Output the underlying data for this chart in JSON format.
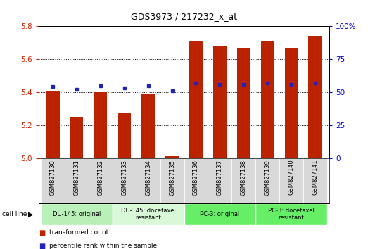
{
  "title": "GDS3973 / 217232_x_at",
  "samples": [
    "GSM827130",
    "GSM827131",
    "GSM827132",
    "GSM827133",
    "GSM827134",
    "GSM827135",
    "GSM827136",
    "GSM827137",
    "GSM827138",
    "GSM827139",
    "GSM827140",
    "GSM827141"
  ],
  "red_values": [
    5.41,
    5.25,
    5.4,
    5.27,
    5.39,
    5.01,
    5.71,
    5.68,
    5.67,
    5.71,
    5.67,
    5.74
  ],
  "blue_values": [
    54,
    52,
    55,
    53,
    55,
    51,
    57,
    56,
    56,
    57,
    56,
    57
  ],
  "ylim_left": [
    5.0,
    5.8
  ],
  "ylim_right": [
    0,
    100
  ],
  "yticks_left": [
    5.0,
    5.2,
    5.4,
    5.6,
    5.8
  ],
  "yticks_right": [
    0,
    25,
    50,
    75,
    100
  ],
  "group_defs": [
    {
      "start": 0,
      "end": 2,
      "color": "#b8f0b8",
      "label": "DU-145: original"
    },
    {
      "start": 3,
      "end": 5,
      "color": "#d8f8d8",
      "label": "DU-145: docetaxel\nresistant"
    },
    {
      "start": 6,
      "end": 8,
      "color": "#66ee66",
      "label": "PC-3: original"
    },
    {
      "start": 9,
      "end": 11,
      "color": "#66ee66",
      "label": "PC-3: docetaxel\nresistant"
    }
  ],
  "bar_color": "#bb2200",
  "dot_color": "#2222bb",
  "bar_width": 0.55,
  "ybase": 5.0,
  "plot_bg": "#ffffff",
  "tick_color_left": "#cc2200",
  "tick_color_right": "#0000cc",
  "grid_color": "#000000",
  "title_fontsize": 9,
  "tick_fontsize": 7.5,
  "label_fontsize": 7
}
